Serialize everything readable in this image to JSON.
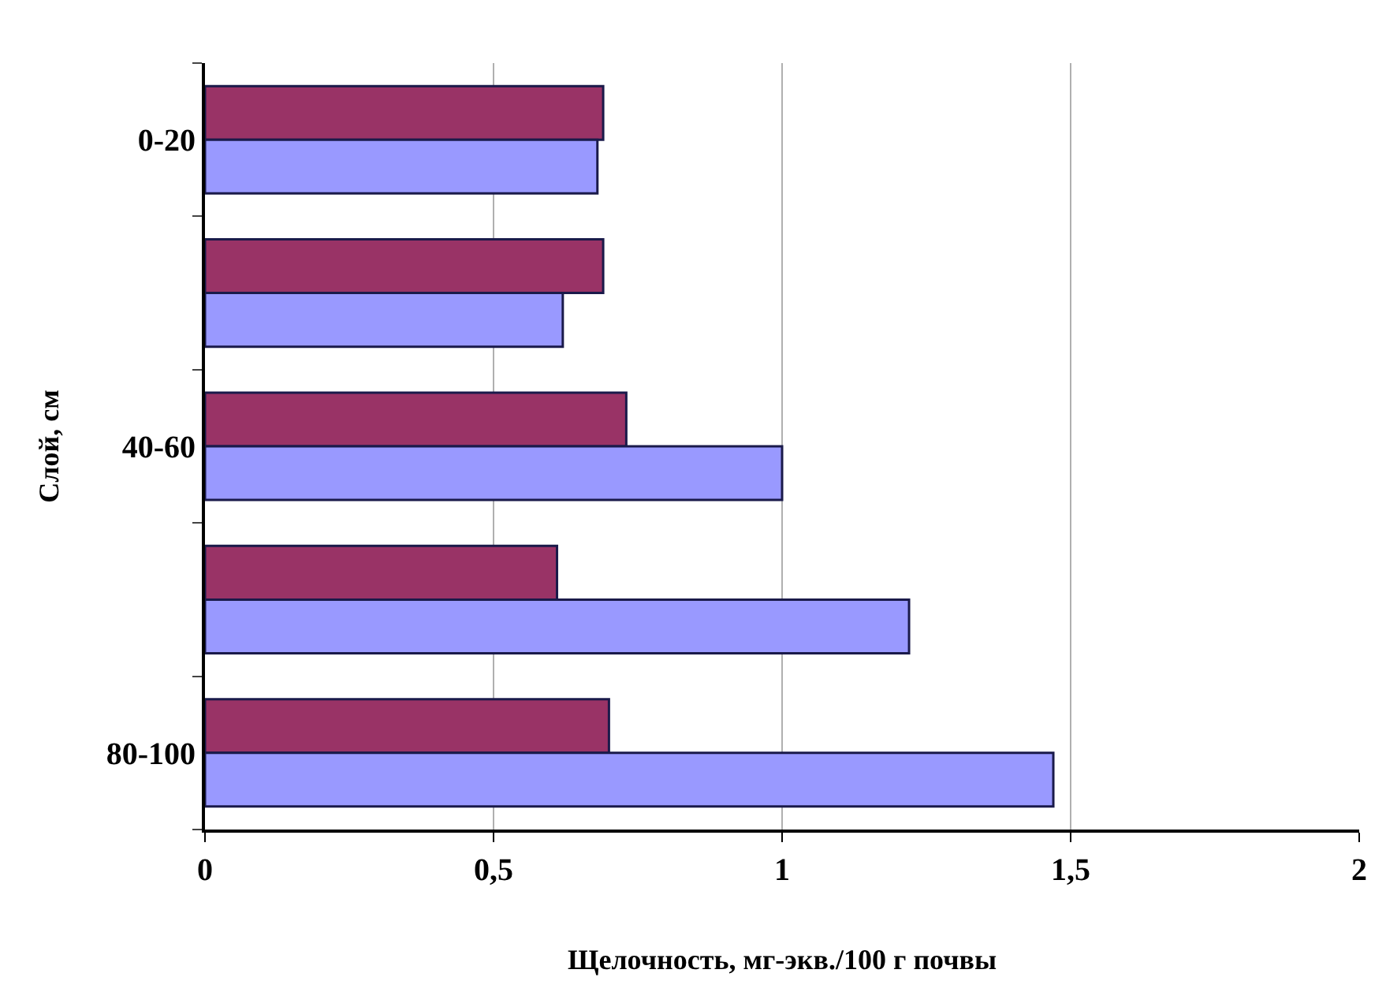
{
  "chart_data": {
    "type": "bar",
    "orientation": "horizontal",
    "categories": [
      "0-20",
      null,
      "40-60",
      null,
      "80-100"
    ],
    "series": [
      {
        "color": "#993366",
        "values": [
          0.69,
          0.69,
          0.73,
          0.61,
          0.7
        ]
      },
      {
        "color": "#9999ff",
        "values": [
          0.68,
          0.62,
          1.0,
          1.22,
          1.47
        ]
      }
    ],
    "xlim": [
      0,
      2
    ],
    "xticks": [
      0,
      {
        "value": 0.5,
        "label": "0,5"
      },
      1,
      {
        "value": 1.5,
        "label": "1,5"
      },
      2
    ],
    "xlabel": "Щелочность, мг-экв./100 г почвы",
    "ylabel": "Слой, см",
    "grid": "x",
    "legend": false
  }
}
